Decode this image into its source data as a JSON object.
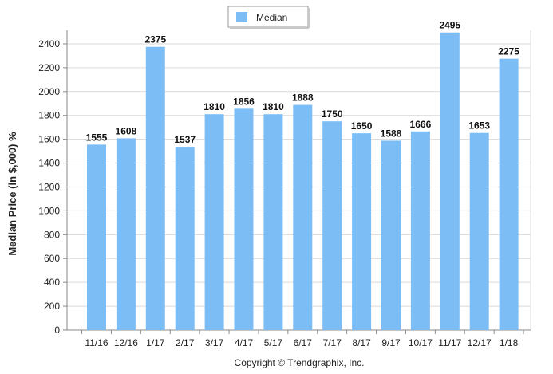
{
  "chart_data": {
    "type": "bar",
    "categories": [
      "11/16",
      "12/16",
      "1/17",
      "2/17",
      "3/17",
      "4/17",
      "5/17",
      "6/17",
      "7/17",
      "8/17",
      "9/17",
      "10/17",
      "11/17",
      "12/17",
      "1/18"
    ],
    "series": [
      {
        "name": "Median",
        "values": [
          1555,
          1608,
          2375,
          1537,
          1810,
          1856,
          1810,
          1888,
          1750,
          1650,
          1588,
          1666,
          2495,
          1653,
          2275
        ],
        "color": "#7cbdf5"
      }
    ],
    "ylabel": "Median Price (in $,000) %",
    "ylim": [
      0,
      2500
    ],
    "yticks": [
      0,
      200,
      400,
      600,
      800,
      1000,
      1200,
      1400,
      1600,
      1800,
      2000,
      2200,
      2400
    ],
    "grid": true,
    "legend": "top-center",
    "data_labels": true
  },
  "footer": "Copyright © Trendgraphix, Inc."
}
